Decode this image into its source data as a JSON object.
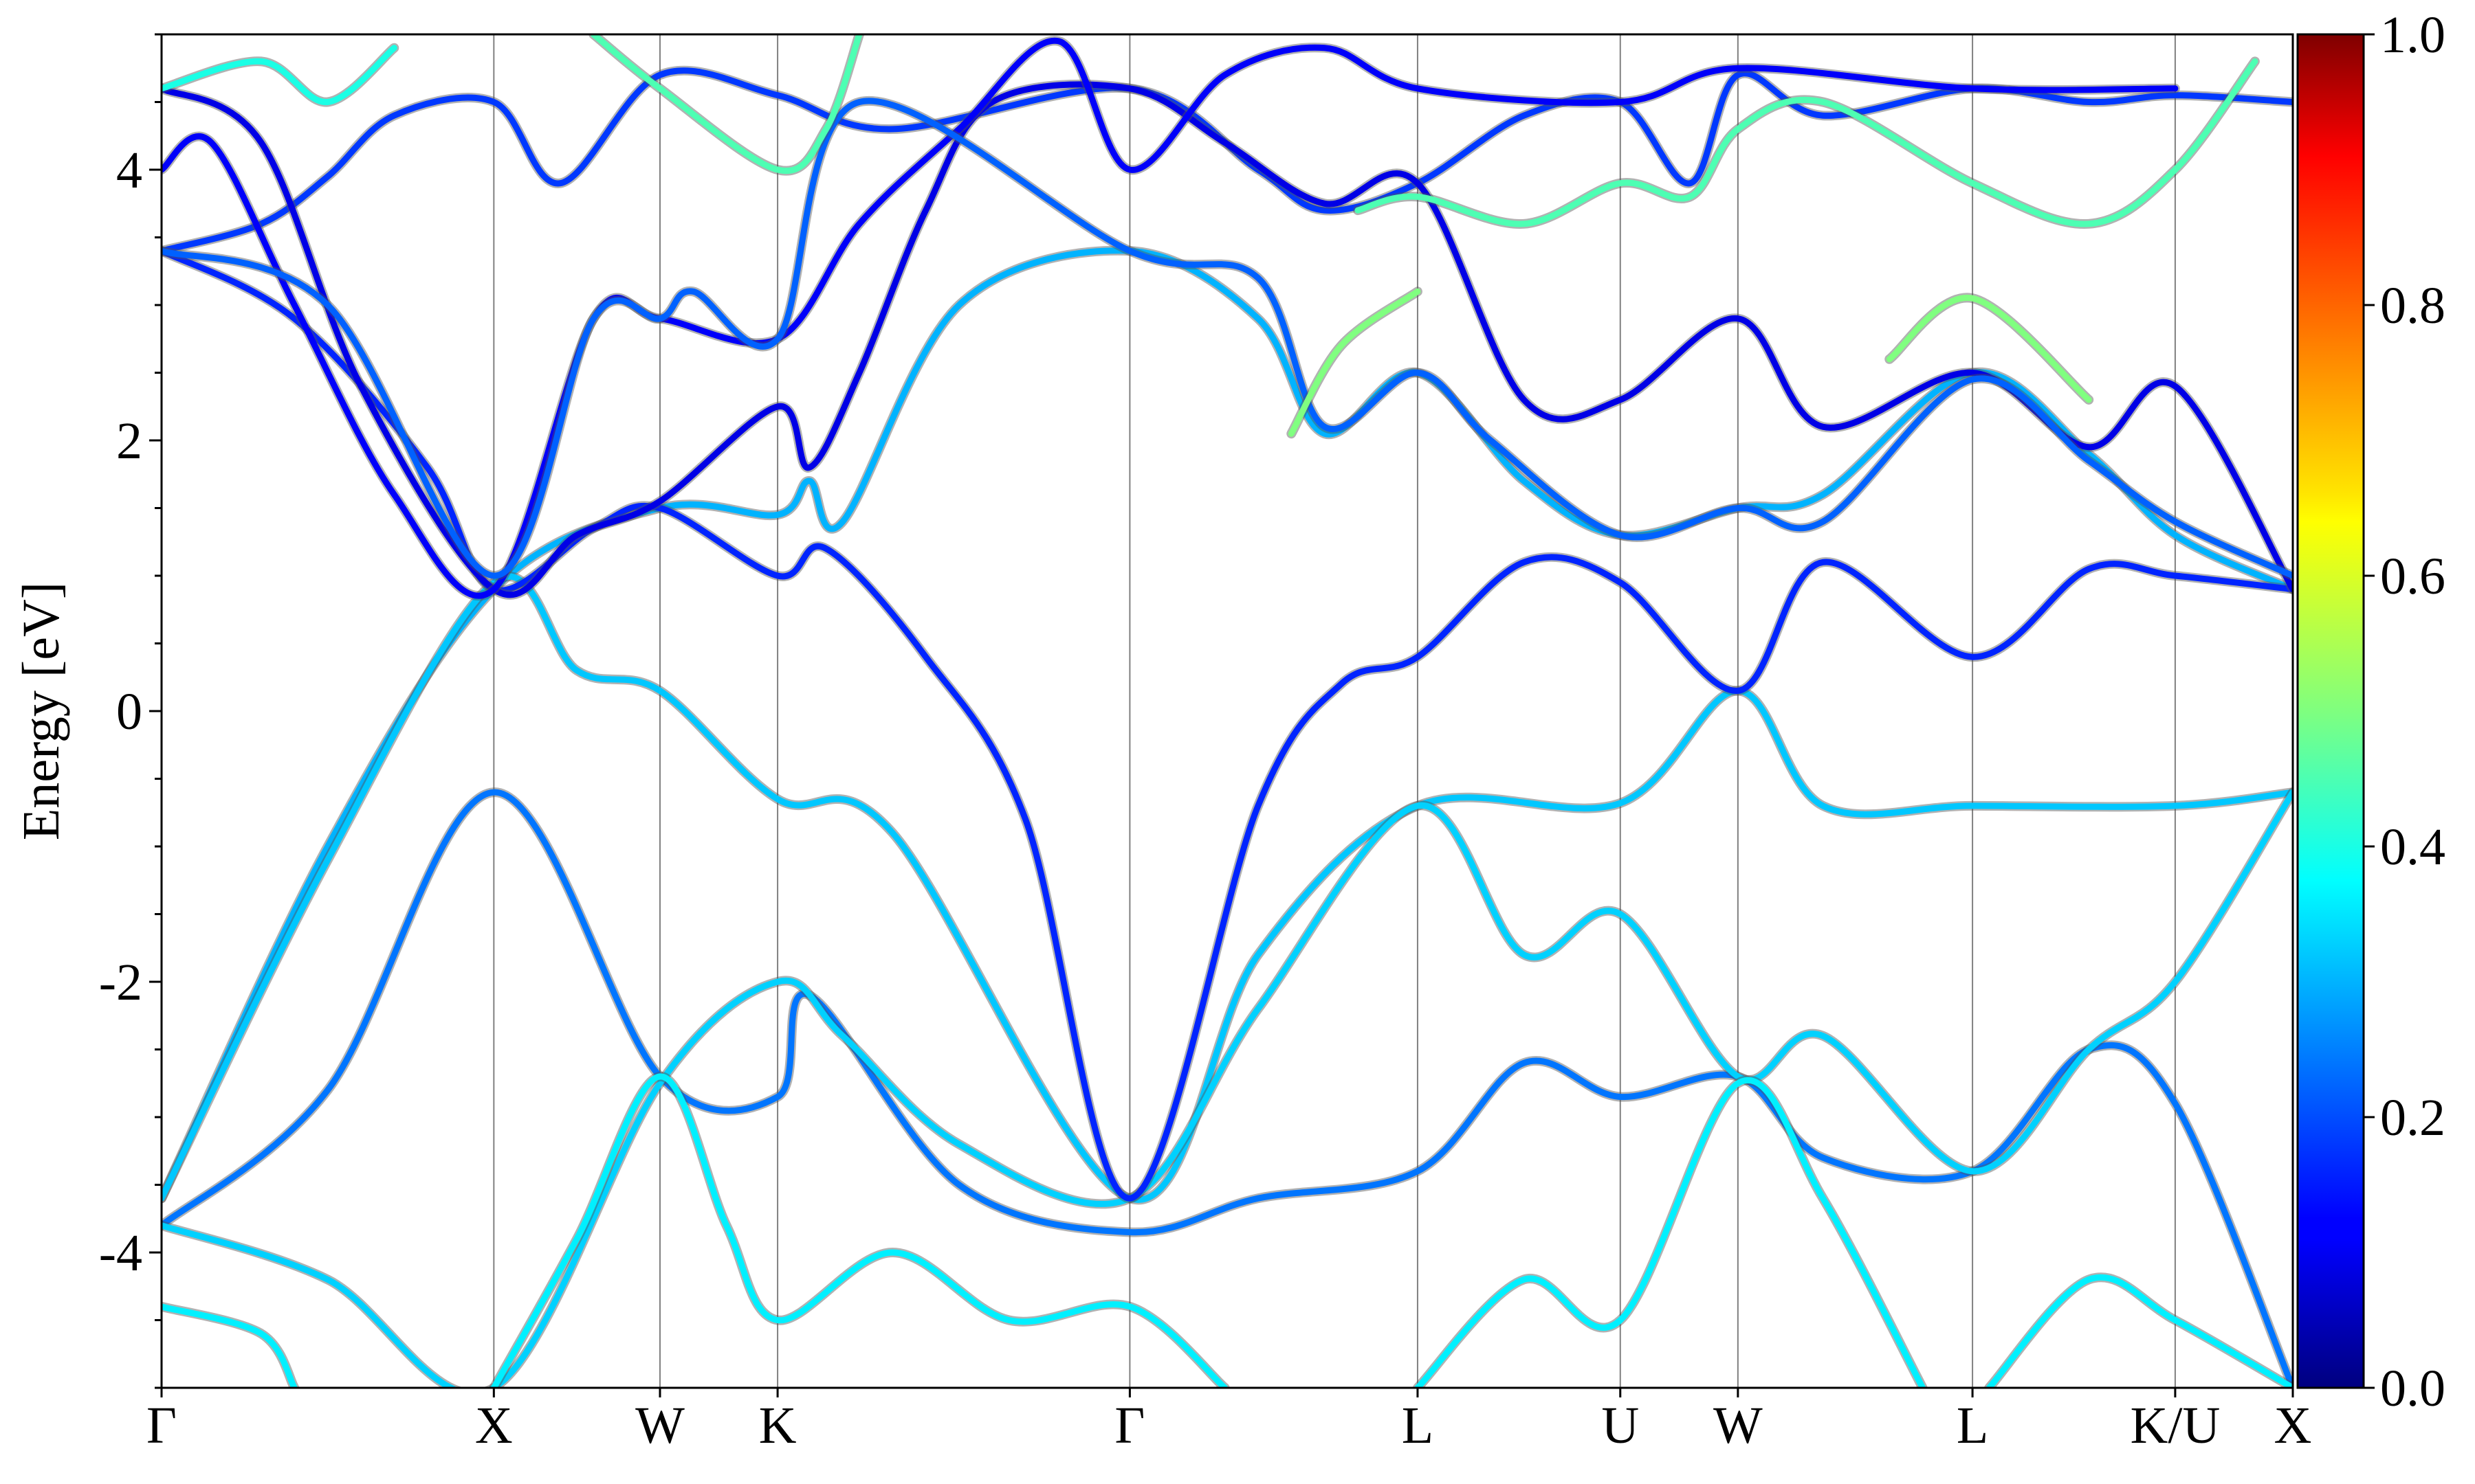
{
  "chart_data": {
    "type": "line",
    "title": "",
    "xlabel": "",
    "ylabel": "Energy [eV]",
    "ylim": [
      -5,
      5
    ],
    "yticks": [
      -4,
      -2,
      0,
      2,
      4
    ],
    "grid": false,
    "kpath": [
      {
        "label": "Γ",
        "x": 0.0
      },
      {
        "label": "X",
        "x": 1.0
      },
      {
        "label": "W",
        "x": 1.5
      },
      {
        "label": "K",
        "x": 1.854
      },
      {
        "label": "Γ",
        "x": 2.914
      },
      {
        "label": "L",
        "x": 3.78
      },
      {
        "label": "U",
        "x": 4.39
      },
      {
        "label": "W",
        "x": 4.744
      },
      {
        "label": "L",
        "x": 5.45
      },
      {
        "label": "K/U",
        "x": 6.06
      },
      {
        "label": "X",
        "x": 6.414
      }
    ],
    "colorbar": {
      "colormap": "jet",
      "range": [
        0.0,
        1.0
      ],
      "ticks": [
        "0.0",
        "0.2",
        "0.4",
        "0.6",
        "0.8",
        "1.0"
      ]
    },
    "series": [
      {
        "w": 0.3,
        "points": [
          [
            0,
            -3.6
          ],
          [
            0.5,
            -1.0
          ],
          [
            1.0,
            0.9
          ],
          [
            1.5,
            1.5
          ],
          [
            1.854,
            1.45
          ],
          [
            1.95,
            1.7
          ],
          [
            2.05,
            1.4
          ],
          [
            2.4,
            3.0
          ],
          [
            2.914,
            3.4
          ],
          [
            3.3,
            2.9
          ],
          [
            3.5,
            2.05
          ],
          [
            3.78,
            2.5
          ],
          [
            4.1,
            1.7
          ],
          [
            4.39,
            1.3
          ],
          [
            4.744,
            1.5
          ],
          [
            5.0,
            1.6
          ],
          [
            5.45,
            2.5
          ],
          [
            5.8,
            1.9
          ],
          [
            6.06,
            1.3
          ],
          [
            6.414,
            0.9
          ]
        ]
      },
      {
        "w": 0.32,
        "points": [
          [
            0,
            -3.6
          ],
          [
            0.5,
            -1.1
          ],
          [
            1.0,
            0.95
          ],
          [
            1.25,
            0.3
          ],
          [
            1.5,
            0.15
          ],
          [
            1.854,
            -0.65
          ],
          [
            2.2,
            -0.9
          ],
          [
            2.914,
            -3.6
          ],
          [
            3.3,
            -1.8
          ],
          [
            3.78,
            -0.7
          ],
          [
            4.39,
            -0.68
          ],
          [
            4.744,
            0.15
          ],
          [
            5.0,
            -0.7
          ],
          [
            5.45,
            -0.7
          ],
          [
            6.06,
            -0.7
          ],
          [
            6.414,
            -0.6
          ]
        ]
      },
      {
        "w": 0.24,
        "points": [
          [
            0,
            -3.8
          ],
          [
            0.5,
            -2.8
          ],
          [
            1.0,
            -0.6
          ],
          [
            1.5,
            -2.7
          ],
          [
            1.854,
            -2.85
          ],
          [
            1.95,
            -2.1
          ],
          [
            2.4,
            -3.5
          ],
          [
            2.914,
            -3.85
          ],
          [
            3.3,
            -3.6
          ],
          [
            3.78,
            -3.4
          ],
          [
            4.1,
            -2.6
          ],
          [
            4.39,
            -2.85
          ],
          [
            4.744,
            -2.7
          ],
          [
            5.0,
            -3.3
          ],
          [
            5.45,
            -3.4
          ],
          [
            5.8,
            -2.5
          ],
          [
            6.06,
            -2.9
          ],
          [
            6.414,
            -5.0
          ]
        ]
      },
      {
        "w": 0.33,
        "points": [
          [
            0,
            -3.8
          ],
          [
            0.5,
            -4.2
          ],
          [
            1.0,
            -5.0
          ],
          [
            1.5,
            -2.75
          ],
          [
            1.854,
            -2.0
          ],
          [
            2.05,
            -2.4
          ],
          [
            2.4,
            -3.2
          ],
          [
            2.914,
            -3.6
          ],
          [
            3.3,
            -2.2
          ],
          [
            3.78,
            -0.7
          ],
          [
            4.1,
            -1.8
          ],
          [
            4.39,
            -1.5
          ],
          [
            4.744,
            -2.7
          ],
          [
            5.0,
            -2.4
          ],
          [
            5.45,
            -3.4
          ],
          [
            5.8,
            -2.5
          ],
          [
            6.06,
            -2.0
          ],
          [
            6.414,
            -0.6
          ]
        ]
      },
      {
        "w": 0.36,
        "points": [
          [
            0,
            -4.4
          ],
          [
            0.3,
            -4.6
          ],
          [
            0.4,
            -5.0
          ]
        ]
      },
      {
        "w": 0.36,
        "points": [
          [
            1.0,
            -5.0
          ],
          [
            1.25,
            -3.9
          ],
          [
            1.5,
            -2.7
          ],
          [
            1.7,
            -3.8
          ],
          [
            1.854,
            -4.5
          ],
          [
            2.2,
            -4.0
          ],
          [
            2.55,
            -4.5
          ],
          [
            2.914,
            -4.4
          ],
          [
            3.2,
            -5.0
          ]
        ]
      },
      {
        "w": 0.36,
        "points": [
          [
            3.78,
            -5.0
          ],
          [
            4.1,
            -4.2
          ],
          [
            4.39,
            -4.5
          ],
          [
            4.744,
            -2.75
          ],
          [
            5.0,
            -3.6
          ],
          [
            5.3,
            -5.0
          ]
        ]
      },
      {
        "w": 0.36,
        "points": [
          [
            5.5,
            -5.0
          ],
          [
            5.8,
            -4.2
          ],
          [
            6.06,
            -4.5
          ],
          [
            6.414,
            -5.0
          ]
        ]
      },
      {
        "w": 0.18,
        "points": [
          [
            0,
            3.4
          ],
          [
            0.3,
            3.6
          ],
          [
            0.5,
            3.95
          ],
          [
            0.7,
            4.4
          ],
          [
            1.0,
            4.5
          ],
          [
            1.2,
            3.9
          ],
          [
            1.5,
            4.7
          ],
          [
            1.854,
            4.55
          ],
          [
            2.2,
            4.3
          ],
          [
            2.914,
            4.6
          ],
          [
            3.3,
            4.0
          ],
          [
            3.5,
            3.7
          ],
          [
            3.78,
            3.9
          ],
          [
            4.1,
            4.4
          ],
          [
            4.39,
            4.5
          ],
          [
            4.6,
            3.9
          ],
          [
            4.744,
            4.7
          ],
          [
            5.0,
            4.4
          ],
          [
            5.45,
            4.6
          ],
          [
            5.8,
            4.5
          ],
          [
            6.06,
            4.55
          ],
          [
            6.414,
            4.5
          ]
        ]
      },
      {
        "w": 0.16,
        "points": [
          [
            0,
            3.4
          ],
          [
            0.4,
            2.9
          ],
          [
            0.8,
            1.8
          ],
          [
            1.0,
            0.9
          ],
          [
            1.3,
            1.35
          ],
          [
            1.5,
            1.5
          ],
          [
            1.854,
            1.0
          ],
          [
            2.0,
            1.2
          ],
          [
            2.3,
            0.4
          ],
          [
            2.6,
            -0.8
          ],
          [
            2.914,
            -3.6
          ],
          [
            3.3,
            -0.7
          ],
          [
            3.55,
            0.2
          ],
          [
            3.78,
            0.4
          ],
          [
            4.1,
            1.1
          ],
          [
            4.39,
            0.95
          ],
          [
            4.744,
            0.15
          ],
          [
            5.0,
            1.1
          ],
          [
            5.45,
            0.4
          ],
          [
            5.8,
            1.05
          ],
          [
            6.06,
            1.0
          ],
          [
            6.414,
            0.9
          ]
        ]
      },
      {
        "w": 0.1,
        "points": [
          [
            0,
            4.6
          ],
          [
            0.3,
            4.2
          ],
          [
            0.6,
            2.4
          ],
          [
            1.0,
            0.9
          ],
          [
            1.25,
            1.3
          ],
          [
            1.5,
            1.55
          ],
          [
            1.854,
            2.25
          ],
          [
            1.95,
            1.8
          ],
          [
            2.1,
            2.5
          ],
          [
            2.3,
            3.7
          ],
          [
            2.5,
            4.5
          ],
          [
            2.914,
            4.6
          ],
          [
            3.2,
            4.2
          ],
          [
            3.5,
            3.75
          ],
          [
            3.78,
            3.9
          ],
          [
            4.1,
            2.3
          ],
          [
            4.39,
            2.3
          ],
          [
            4.744,
            2.9
          ],
          [
            5.0,
            2.1
          ],
          [
            5.45,
            2.5
          ],
          [
            5.8,
            1.95
          ],
          [
            6.06,
            2.4
          ],
          [
            6.414,
            0.9
          ]
        ]
      },
      {
        "w": 0.12,
        "points": [
          [
            0,
            4.0
          ],
          [
            0.15,
            4.2
          ],
          [
            0.4,
            3.0
          ],
          [
            0.7,
            1.6
          ],
          [
            1.0,
            0.9
          ],
          [
            1.3,
            2.9
          ],
          [
            1.5,
            2.9
          ],
          [
            1.854,
            2.75
          ],
          [
            2.1,
            3.6
          ],
          [
            2.4,
            4.3
          ],
          [
            2.7,
            4.95
          ],
          [
            2.914,
            4.0
          ],
          [
            3.2,
            4.7
          ],
          [
            3.5,
            4.9
          ],
          [
            3.78,
            4.6
          ],
          [
            4.39,
            4.5
          ],
          [
            4.744,
            4.75
          ],
          [
            5.45,
            4.6
          ],
          [
            6.06,
            4.6
          ]
        ]
      },
      {
        "w": 0.22,
        "points": [
          [
            0,
            3.4
          ],
          [
            0.5,
            3.0
          ],
          [
            1.0,
            1.0
          ],
          [
            1.3,
            2.9
          ],
          [
            1.5,
            2.9
          ],
          [
            1.6,
            3.1
          ],
          [
            1.854,
            2.75
          ],
          [
            2.1,
            4.5
          ],
          [
            2.914,
            3.4
          ],
          [
            3.3,
            3.2
          ],
          [
            3.5,
            2.1
          ],
          [
            3.78,
            2.5
          ],
          [
            4.0,
            2.0
          ],
          [
            4.39,
            1.3
          ],
          [
            4.744,
            1.5
          ],
          [
            5.0,
            1.4
          ],
          [
            5.45,
            2.45
          ],
          [
            5.8,
            1.85
          ],
          [
            6.06,
            1.4
          ],
          [
            6.414,
            1.0
          ]
        ]
      },
      {
        "w": 0.45,
        "points": [
          [
            1.3,
            5.0
          ],
          [
            1.5,
            4.6
          ],
          [
            1.854,
            4.0
          ],
          [
            2.0,
            4.3
          ],
          [
            2.1,
            5.0
          ]
        ]
      },
      {
        "w": 0.45,
        "points": [
          [
            3.6,
            3.7
          ],
          [
            3.78,
            3.8
          ],
          [
            4.1,
            3.6
          ],
          [
            4.39,
            3.9
          ],
          [
            4.6,
            3.8
          ],
          [
            4.744,
            4.3
          ],
          [
            5.0,
            4.5
          ],
          [
            5.45,
            3.9
          ],
          [
            5.8,
            3.6
          ],
          [
            6.06,
            4.0
          ],
          [
            6.3,
            4.8
          ]
        ]
      },
      {
        "w": 0.4,
        "points": [
          [
            0,
            4.6
          ],
          [
            0.3,
            4.8
          ],
          [
            0.5,
            4.5
          ],
          [
            0.7,
            4.9
          ]
        ]
      },
      {
        "w": 0.5,
        "points": [
          [
            3.78,
            3.1
          ],
          [
            3.55,
            2.7
          ],
          [
            3.4,
            2.05
          ]
        ]
      },
      {
        "w": 0.5,
        "points": [
          [
            5.2,
            2.6
          ],
          [
            5.45,
            3.05
          ],
          [
            5.8,
            2.3
          ]
        ]
      }
    ]
  }
}
